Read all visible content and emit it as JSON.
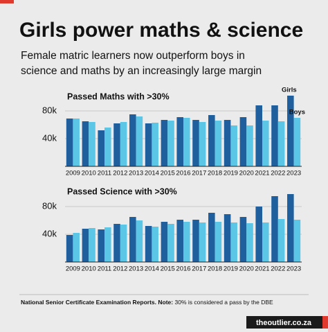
{
  "header": {
    "title": "Girls power maths & science",
    "subtitle": [
      "Female matric learners now outperform boys in",
      "science and maths by an increasingly large margin"
    ]
  },
  "chart_data": [
    {
      "type": "bar",
      "title": "Passed Maths with >30%",
      "legend": "inline",
      "categories": [
        "2009",
        "2010",
        "2011",
        "2012",
        "2013",
        "2014",
        "2015",
        "2016",
        "2017",
        "2018",
        "2019",
        "2020",
        "2021",
        "2022",
        "2023"
      ],
      "series": [
        {
          "name": "Girls",
          "color": "#1f5f9e",
          "values": [
            69000,
            65000,
            52000,
            62000,
            75000,
            62000,
            67000,
            71000,
            67000,
            74000,
            67000,
            71000,
            88000,
            88000,
            102000
          ]
        },
        {
          "name": "Boys",
          "color": "#5cc6e6",
          "values": [
            69000,
            64000,
            56000,
            64000,
            72000,
            63000,
            66000,
            70000,
            64000,
            66000,
            59000,
            59000,
            66000,
            65000,
            70000
          ]
        }
      ],
      "ylim": [
        0,
        110000
      ],
      "yticks": [
        {
          "value": 40000,
          "label": "40k"
        },
        {
          "value": 80000,
          "label": "80k"
        }
      ],
      "grid": true
    },
    {
      "type": "bar",
      "title": "Passed Science with >30%",
      "categories": [
        "2009",
        "2010",
        "2011",
        "2012",
        "2013",
        "2014",
        "2015",
        "2016",
        "2017",
        "2018",
        "2019",
        "2020",
        "2021",
        "2022",
        "2023"
      ],
      "series": [
        {
          "name": "Girls",
          "color": "#1f5f9e",
          "values": [
            39000,
            48000,
            47000,
            55000,
            65000,
            52000,
            58000,
            61000,
            61000,
            71000,
            69000,
            65000,
            80000,
            95000,
            98000
          ]
        },
        {
          "name": "Boys",
          "color": "#5cc6e6",
          "values": [
            42000,
            49000,
            50000,
            54000,
            60000,
            51000,
            55000,
            58000,
            57000,
            58000,
            57000,
            56000,
            57000,
            62000,
            61000
          ]
        }
      ],
      "ylim": [
        0,
        100000
      ],
      "yticks": [
        {
          "value": 40000,
          "label": "40k"
        },
        {
          "value": 80000,
          "label": "80k"
        }
      ],
      "grid": true
    }
  ],
  "footer": {
    "source": "National Senior Certificate Examination Reports. Note:",
    "note": "30% is considered a pass by the DBE",
    "brand": "theoutlier.co.za"
  }
}
